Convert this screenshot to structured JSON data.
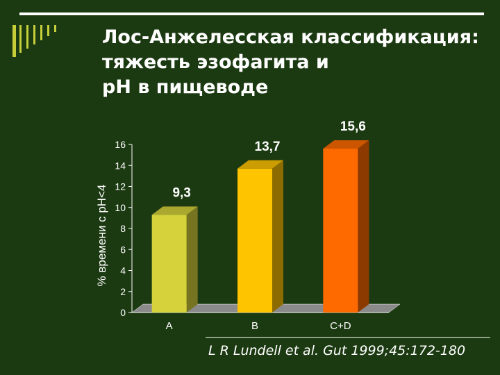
{
  "slide": {
    "title_lines": [
      "Лос-Анжелесская классификация:",
      "тяжесть эзофагита и",
      "pH в пищеводе"
    ],
    "citation": "L R Lundell et al. Gut 1999;45:172-180",
    "colors": {
      "background": "#1c3a12",
      "accent_bars": "#c6cf3a",
      "text": "#ffffff"
    }
  },
  "chart_data": {
    "type": "bar",
    "categories": [
      "A",
      "B",
      "C+D"
    ],
    "values": [
      9.3,
      13.7,
      15.6
    ],
    "value_labels": [
      "9,3",
      "13,7",
      "15,6"
    ],
    "bar_colors": [
      "#d6d23c",
      "#ffc400",
      "#ff6a00"
    ],
    "ylabel": "% времени с pH<4",
    "xlabel": "",
    "ylim": [
      0,
      16
    ],
    "yticks": [
      0,
      2,
      4,
      6,
      8,
      10,
      12,
      14,
      16
    ],
    "grid": false,
    "legend": "none",
    "style": "3d"
  }
}
